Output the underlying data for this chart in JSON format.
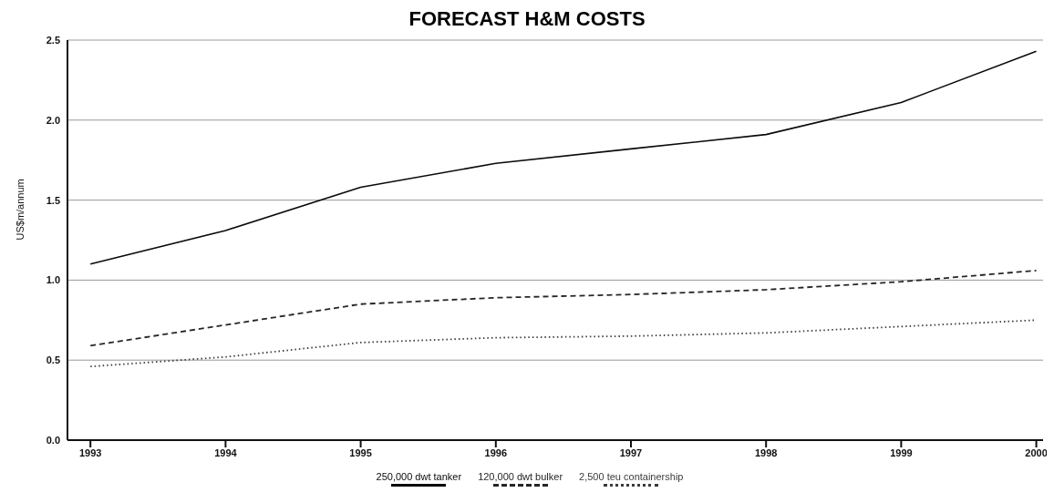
{
  "chart_data": {
    "type": "line",
    "title": "FORECAST H&M COSTS",
    "ylabel": "US$m/annum",
    "x": [
      1993,
      1994,
      1995,
      1996,
      1997,
      1998,
      1999,
      2000
    ],
    "xlim": [
      1992.83,
      2000.05
    ],
    "xticks": [
      1993,
      1994,
      1995,
      1996,
      1997,
      1998,
      1999,
      2000
    ],
    "ylim": [
      0,
      2.5
    ],
    "yticks": [
      {
        "value": 0,
        "label": "0.0"
      },
      {
        "value": 0.5,
        "label": "0.5"
      },
      {
        "value": 1,
        "label": "1.0"
      },
      {
        "value": 1.5,
        "label": "1.5"
      },
      {
        "value": 2,
        "label": "2.0"
      },
      {
        "value": 2.5,
        "label": "2.5"
      }
    ],
    "grid": "y",
    "legend": "bottom",
    "marker": "none",
    "series": [
      {
        "name": "250,000 dwt tanker",
        "color": "#0a0a0a",
        "line_style": "solid",
        "values": [
          1.1,
          1.31,
          1.58,
          1.73,
          1.82,
          1.91,
          2.11,
          2.43
        ]
      },
      {
        "name": "120,000 dwt bulker",
        "color": "#262626",
        "line_style": "dashed",
        "values": [
          0.59,
          0.72,
          0.85,
          0.89,
          0.91,
          0.94,
          0.99,
          1.06
        ]
      },
      {
        "name": "2,500 teu containership",
        "color": "#3c3c3c",
        "line_style": "dotted",
        "values": [
          0.46,
          0.52,
          0.61,
          0.64,
          0.65,
          0.67,
          0.71,
          0.75
        ]
      }
    ]
  }
}
